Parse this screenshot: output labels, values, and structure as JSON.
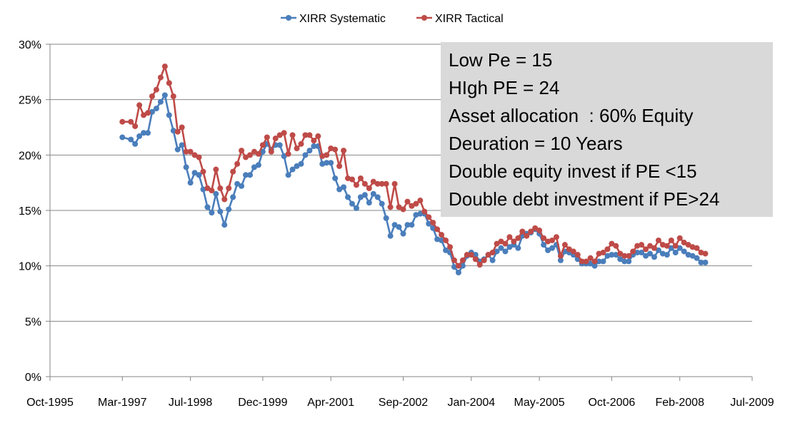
{
  "chart_data": {
    "type": "line",
    "title": "",
    "xlabel": "",
    "ylabel": "",
    "x_axis": {
      "ticks": [
        "Oct-1995",
        "Mar-1997",
        "Jul-1998",
        "Dec-1999",
        "Apr-2001",
        "Sep-2002",
        "Jan-2004",
        "May-2005",
        "Oct-2006",
        "Feb-2008",
        "Jul-2009"
      ],
      "range": [
        "1995-10",
        "2009-07"
      ]
    },
    "y_axis": {
      "ticks": [
        "0%",
        "5%",
        "10%",
        "15%",
        "20%",
        "25%",
        "30%"
      ],
      "ylim": [
        0,
        30
      ],
      "unit": "%"
    },
    "grid": "horizontal",
    "legend": "top-center",
    "series": [
      {
        "name": "XIRR Systematic",
        "color": "#4a7ebb",
        "points": [
          [
            "1997-03",
            21.6
          ],
          [
            "1997-05",
            21.4
          ],
          [
            "1997-06",
            21.0
          ],
          [
            "1997-07",
            21.7
          ],
          [
            "1997-08",
            22.0
          ],
          [
            "1997-09",
            22.0
          ],
          [
            "1997-10",
            23.9
          ],
          [
            "1997-11",
            24.2
          ],
          [
            "1997-12",
            24.8
          ],
          [
            "1998-01",
            25.4
          ],
          [
            "1998-02",
            23.6
          ],
          [
            "1998-03",
            22.2
          ],
          [
            "1998-04",
            20.5
          ],
          [
            "1998-05",
            20.9
          ],
          [
            "1998-06",
            18.9
          ],
          [
            "1998-07",
            17.5
          ],
          [
            "1998-08",
            18.4
          ],
          [
            "1998-09",
            18.2
          ],
          [
            "1998-10",
            16.9
          ],
          [
            "1998-11",
            15.3
          ],
          [
            "1998-12",
            14.8
          ],
          [
            "1999-01",
            16.5
          ],
          [
            "1999-02",
            14.9
          ],
          [
            "1999-03",
            13.7
          ],
          [
            "1999-04",
            15.1
          ],
          [
            "1999-05",
            16.2
          ],
          [
            "1999-06",
            17.4
          ],
          [
            "1999-07",
            17.2
          ],
          [
            "1999-08",
            18.2
          ],
          [
            "1999-09",
            18.2
          ],
          [
            "1999-10",
            18.9
          ],
          [
            "1999-11",
            19.1
          ],
          [
            "1999-12",
            20.3
          ],
          [
            "2000-01",
            21.0
          ],
          [
            "2000-02",
            20.5
          ],
          [
            "2000-03",
            20.9
          ],
          [
            "2000-04",
            20.9
          ],
          [
            "2000-05",
            19.9
          ],
          [
            "2000-06",
            18.2
          ],
          [
            "2000-07",
            18.7
          ],
          [
            "2000-08",
            19.0
          ],
          [
            "2000-09",
            19.2
          ],
          [
            "2000-10",
            20.0
          ],
          [
            "2000-11",
            20.4
          ],
          [
            "2000-12",
            20.8
          ],
          [
            "2001-01",
            20.8
          ],
          [
            "2001-02",
            19.2
          ],
          [
            "2001-03",
            19.3
          ],
          [
            "2001-04",
            19.3
          ],
          [
            "2001-05",
            17.9
          ],
          [
            "2001-06",
            16.9
          ],
          [
            "2001-07",
            17.1
          ],
          [
            "2001-08",
            16.2
          ],
          [
            "2001-09",
            15.6
          ],
          [
            "2001-10",
            15.2
          ],
          [
            "2001-11",
            16.2
          ],
          [
            "2001-12",
            16.4
          ],
          [
            "2002-01",
            15.7
          ],
          [
            "2002-02",
            16.5
          ],
          [
            "2002-03",
            16.2
          ],
          [
            "2002-04",
            15.6
          ],
          [
            "2002-05",
            14.3
          ],
          [
            "2002-06",
            12.7
          ],
          [
            "2002-07",
            13.7
          ],
          [
            "2002-08",
            13.5
          ],
          [
            "2002-09",
            12.9
          ],
          [
            "2002-10",
            13.7
          ],
          [
            "2002-11",
            13.7
          ],
          [
            "2002-12",
            14.6
          ],
          [
            "2003-01",
            14.7
          ],
          [
            "2003-02",
            14.7
          ],
          [
            "2003-03",
            13.8
          ],
          [
            "2003-04",
            13.4
          ],
          [
            "2003-05",
            12.4
          ],
          [
            "2003-06",
            12.3
          ],
          [
            "2003-07",
            11.4
          ],
          [
            "2003-08",
            11.2
          ],
          [
            "2003-09",
            9.9
          ],
          [
            "2003-10",
            9.4
          ],
          [
            "2003-11",
            10.0
          ],
          [
            "2003-12",
            10.9
          ],
          [
            "2004-01",
            11.2
          ],
          [
            "2004-02",
            11.0
          ],
          [
            "2004-03",
            10.4
          ],
          [
            "2004-04",
            10.6
          ],
          [
            "2004-05",
            11.0
          ],
          [
            "2004-06",
            10.5
          ],
          [
            "2004-07",
            11.3
          ],
          [
            "2004-08",
            11.6
          ],
          [
            "2004-09",
            11.3
          ],
          [
            "2004-10",
            11.7
          ],
          [
            "2004-11",
            11.9
          ],
          [
            "2004-12",
            11.6
          ],
          [
            "2005-01",
            12.7
          ],
          [
            "2005-02",
            12.9
          ],
          [
            "2005-03",
            13.0
          ],
          [
            "2005-04",
            13.3
          ],
          [
            "2005-05",
            12.9
          ],
          [
            "2005-06",
            11.9
          ],
          [
            "2005-07",
            11.4
          ],
          [
            "2005-08",
            11.6
          ],
          [
            "2005-09",
            11.9
          ],
          [
            "2005-10",
            10.5
          ],
          [
            "2005-11",
            11.3
          ],
          [
            "2005-12",
            11.2
          ],
          [
            "2006-01",
            11.0
          ],
          [
            "2006-02",
            10.6
          ],
          [
            "2006-03",
            10.2
          ],
          [
            "2006-04",
            10.2
          ],
          [
            "2006-05",
            10.2
          ],
          [
            "2006-06",
            10.0
          ],
          [
            "2006-07",
            10.4
          ],
          [
            "2006-08",
            10.4
          ],
          [
            "2006-09",
            10.9
          ],
          [
            "2006-10",
            11.0
          ],
          [
            "2006-11",
            11.0
          ],
          [
            "2006-12",
            10.6
          ],
          [
            "2007-01",
            10.4
          ],
          [
            "2007-02",
            10.4
          ],
          [
            "2007-03",
            11.0
          ],
          [
            "2007-04",
            11.2
          ],
          [
            "2007-05",
            11.2
          ],
          [
            "2007-06",
            10.9
          ],
          [
            "2007-07",
            11.1
          ],
          [
            "2007-08",
            10.8
          ],
          [
            "2007-09",
            11.4
          ],
          [
            "2007-10",
            11.1
          ],
          [
            "2007-11",
            11.0
          ],
          [
            "2007-12",
            11.6
          ],
          [
            "2008-01",
            11.2
          ],
          [
            "2008-02",
            11.6
          ],
          [
            "2008-03",
            11.3
          ],
          [
            "2008-04",
            11.0
          ],
          [
            "2008-05",
            10.9
          ],
          [
            "2008-06",
            10.7
          ],
          [
            "2008-07",
            10.3
          ],
          [
            "2008-08",
            10.3
          ]
        ]
      },
      {
        "name": "XIRR Tactical",
        "color": "#be4b48",
        "points": [
          [
            "1997-03",
            23.0
          ],
          [
            "1997-05",
            23.0
          ],
          [
            "1997-06",
            22.6
          ],
          [
            "1997-07",
            24.5
          ],
          [
            "1997-08",
            23.6
          ],
          [
            "1997-09",
            23.8
          ],
          [
            "1997-10",
            25.3
          ],
          [
            "1997-11",
            25.9
          ],
          [
            "1997-12",
            27.0
          ],
          [
            "1998-01",
            28.0
          ],
          [
            "1998-02",
            26.5
          ],
          [
            "1998-03",
            25.3
          ],
          [
            "1998-04",
            22.1
          ],
          [
            "1998-05",
            22.5
          ],
          [
            "1998-06",
            20.3
          ],
          [
            "1998-07",
            20.3
          ],
          [
            "1998-08",
            20.0
          ],
          [
            "1998-09",
            19.8
          ],
          [
            "1998-10",
            18.5
          ],
          [
            "1998-11",
            17.0
          ],
          [
            "1998-12",
            16.8
          ],
          [
            "1999-01",
            18.7
          ],
          [
            "1999-02",
            17.0
          ],
          [
            "1999-03",
            16.0
          ],
          [
            "1999-04",
            17.0
          ],
          [
            "1999-05",
            18.5
          ],
          [
            "1999-06",
            19.2
          ],
          [
            "1999-07",
            20.4
          ],
          [
            "1999-08",
            19.8
          ],
          [
            "1999-09",
            20.0
          ],
          [
            "1999-10",
            20.3
          ],
          [
            "1999-11",
            20.1
          ],
          [
            "1999-12",
            20.9
          ],
          [
            "2000-01",
            21.6
          ],
          [
            "2000-02",
            20.3
          ],
          [
            "2000-03",
            21.5
          ],
          [
            "2000-04",
            21.8
          ],
          [
            "2000-05",
            22.0
          ],
          [
            "2000-06",
            20.1
          ],
          [
            "2000-07",
            21.8
          ],
          [
            "2000-08",
            20.6
          ],
          [
            "2000-09",
            21.0
          ],
          [
            "2000-10",
            21.8
          ],
          [
            "2000-11",
            21.8
          ],
          [
            "2000-12",
            21.3
          ],
          [
            "2001-01",
            21.7
          ],
          [
            "2001-02",
            19.9
          ],
          [
            "2001-03",
            20.0
          ],
          [
            "2001-04",
            20.6
          ],
          [
            "2001-05",
            20.5
          ],
          [
            "2001-06",
            19.0
          ],
          [
            "2001-07",
            20.4
          ],
          [
            "2001-08",
            17.9
          ],
          [
            "2001-09",
            17.8
          ],
          [
            "2001-10",
            17.3
          ],
          [
            "2001-11",
            17.9
          ],
          [
            "2001-12",
            17.4
          ],
          [
            "2002-01",
            17.0
          ],
          [
            "2002-02",
            17.6
          ],
          [
            "2002-03",
            17.4
          ],
          [
            "2002-04",
            17.4
          ],
          [
            "2002-05",
            17.4
          ],
          [
            "2002-06",
            15.3
          ],
          [
            "2002-07",
            17.4
          ],
          [
            "2002-08",
            15.3
          ],
          [
            "2002-09",
            15.1
          ],
          [
            "2002-10",
            15.8
          ],
          [
            "2002-11",
            15.4
          ],
          [
            "2002-12",
            15.6
          ],
          [
            "2003-01",
            15.9
          ],
          [
            "2003-02",
            14.9
          ],
          [
            "2003-03",
            14.4
          ],
          [
            "2003-04",
            13.9
          ],
          [
            "2003-05",
            13.3
          ],
          [
            "2003-06",
            12.8
          ],
          [
            "2003-07",
            12.3
          ],
          [
            "2003-08",
            11.7
          ],
          [
            "2003-09",
            10.5
          ],
          [
            "2003-10",
            10.0
          ],
          [
            "2003-11",
            10.5
          ],
          [
            "2003-12",
            11.0
          ],
          [
            "2004-01",
            11.0
          ],
          [
            "2004-02",
            10.6
          ],
          [
            "2004-03",
            10.1
          ],
          [
            "2004-04",
            10.5
          ],
          [
            "2004-05",
            11.0
          ],
          [
            "2004-06",
            11.2
          ],
          [
            "2004-07",
            12.0
          ],
          [
            "2004-08",
            12.2
          ],
          [
            "2004-09",
            12.0
          ],
          [
            "2004-10",
            12.6
          ],
          [
            "2004-11",
            12.2
          ],
          [
            "2004-12",
            12.5
          ],
          [
            "2005-01",
            13.1
          ],
          [
            "2005-02",
            12.7
          ],
          [
            "2005-03",
            13.1
          ],
          [
            "2005-04",
            13.4
          ],
          [
            "2005-05",
            13.2
          ],
          [
            "2005-06",
            12.5
          ],
          [
            "2005-07",
            12.2
          ],
          [
            "2005-08",
            12.3
          ],
          [
            "2005-09",
            12.6
          ],
          [
            "2005-10",
            10.9
          ],
          [
            "2005-11",
            11.9
          ],
          [
            "2005-12",
            11.5
          ],
          [
            "2006-01",
            11.3
          ],
          [
            "2006-02",
            11.0
          ],
          [
            "2006-03",
            10.4
          ],
          [
            "2006-04",
            10.4
          ],
          [
            "2006-05",
            10.7
          ],
          [
            "2006-06",
            10.4
          ],
          [
            "2006-07",
            11.1
          ],
          [
            "2006-08",
            11.2
          ],
          [
            "2006-09",
            11.5
          ],
          [
            "2006-10",
            12.0
          ],
          [
            "2006-11",
            11.8
          ],
          [
            "2006-12",
            11.1
          ],
          [
            "2007-01",
            10.9
          ],
          [
            "2007-02",
            10.9
          ],
          [
            "2007-03",
            11.3
          ],
          [
            "2007-04",
            11.8
          ],
          [
            "2007-05",
            11.9
          ],
          [
            "2007-06",
            11.5
          ],
          [
            "2007-07",
            11.8
          ],
          [
            "2007-08",
            11.6
          ],
          [
            "2007-09",
            12.3
          ],
          [
            "2007-10",
            11.9
          ],
          [
            "2007-11",
            11.8
          ],
          [
            "2007-12",
            12.3
          ],
          [
            "2008-01",
            11.8
          ],
          [
            "2008-02",
            12.5
          ],
          [
            "2008-03",
            12.1
          ],
          [
            "2008-04",
            11.9
          ],
          [
            "2008-05",
            11.7
          ],
          [
            "2008-06",
            11.6
          ],
          [
            "2008-07",
            11.2
          ],
          [
            "2008-08",
            11.1
          ]
        ]
      }
    ],
    "annotation": {
      "lines": [
        "Low Pe = 15",
        "HIgh PE = 24",
        "Asset allocation  : 60% Equity",
        "Deuration = 10 Years",
        "Double equity invest if PE <15",
        "Double debt investment if PE>24"
      ],
      "background": "#d9d9d9"
    }
  }
}
